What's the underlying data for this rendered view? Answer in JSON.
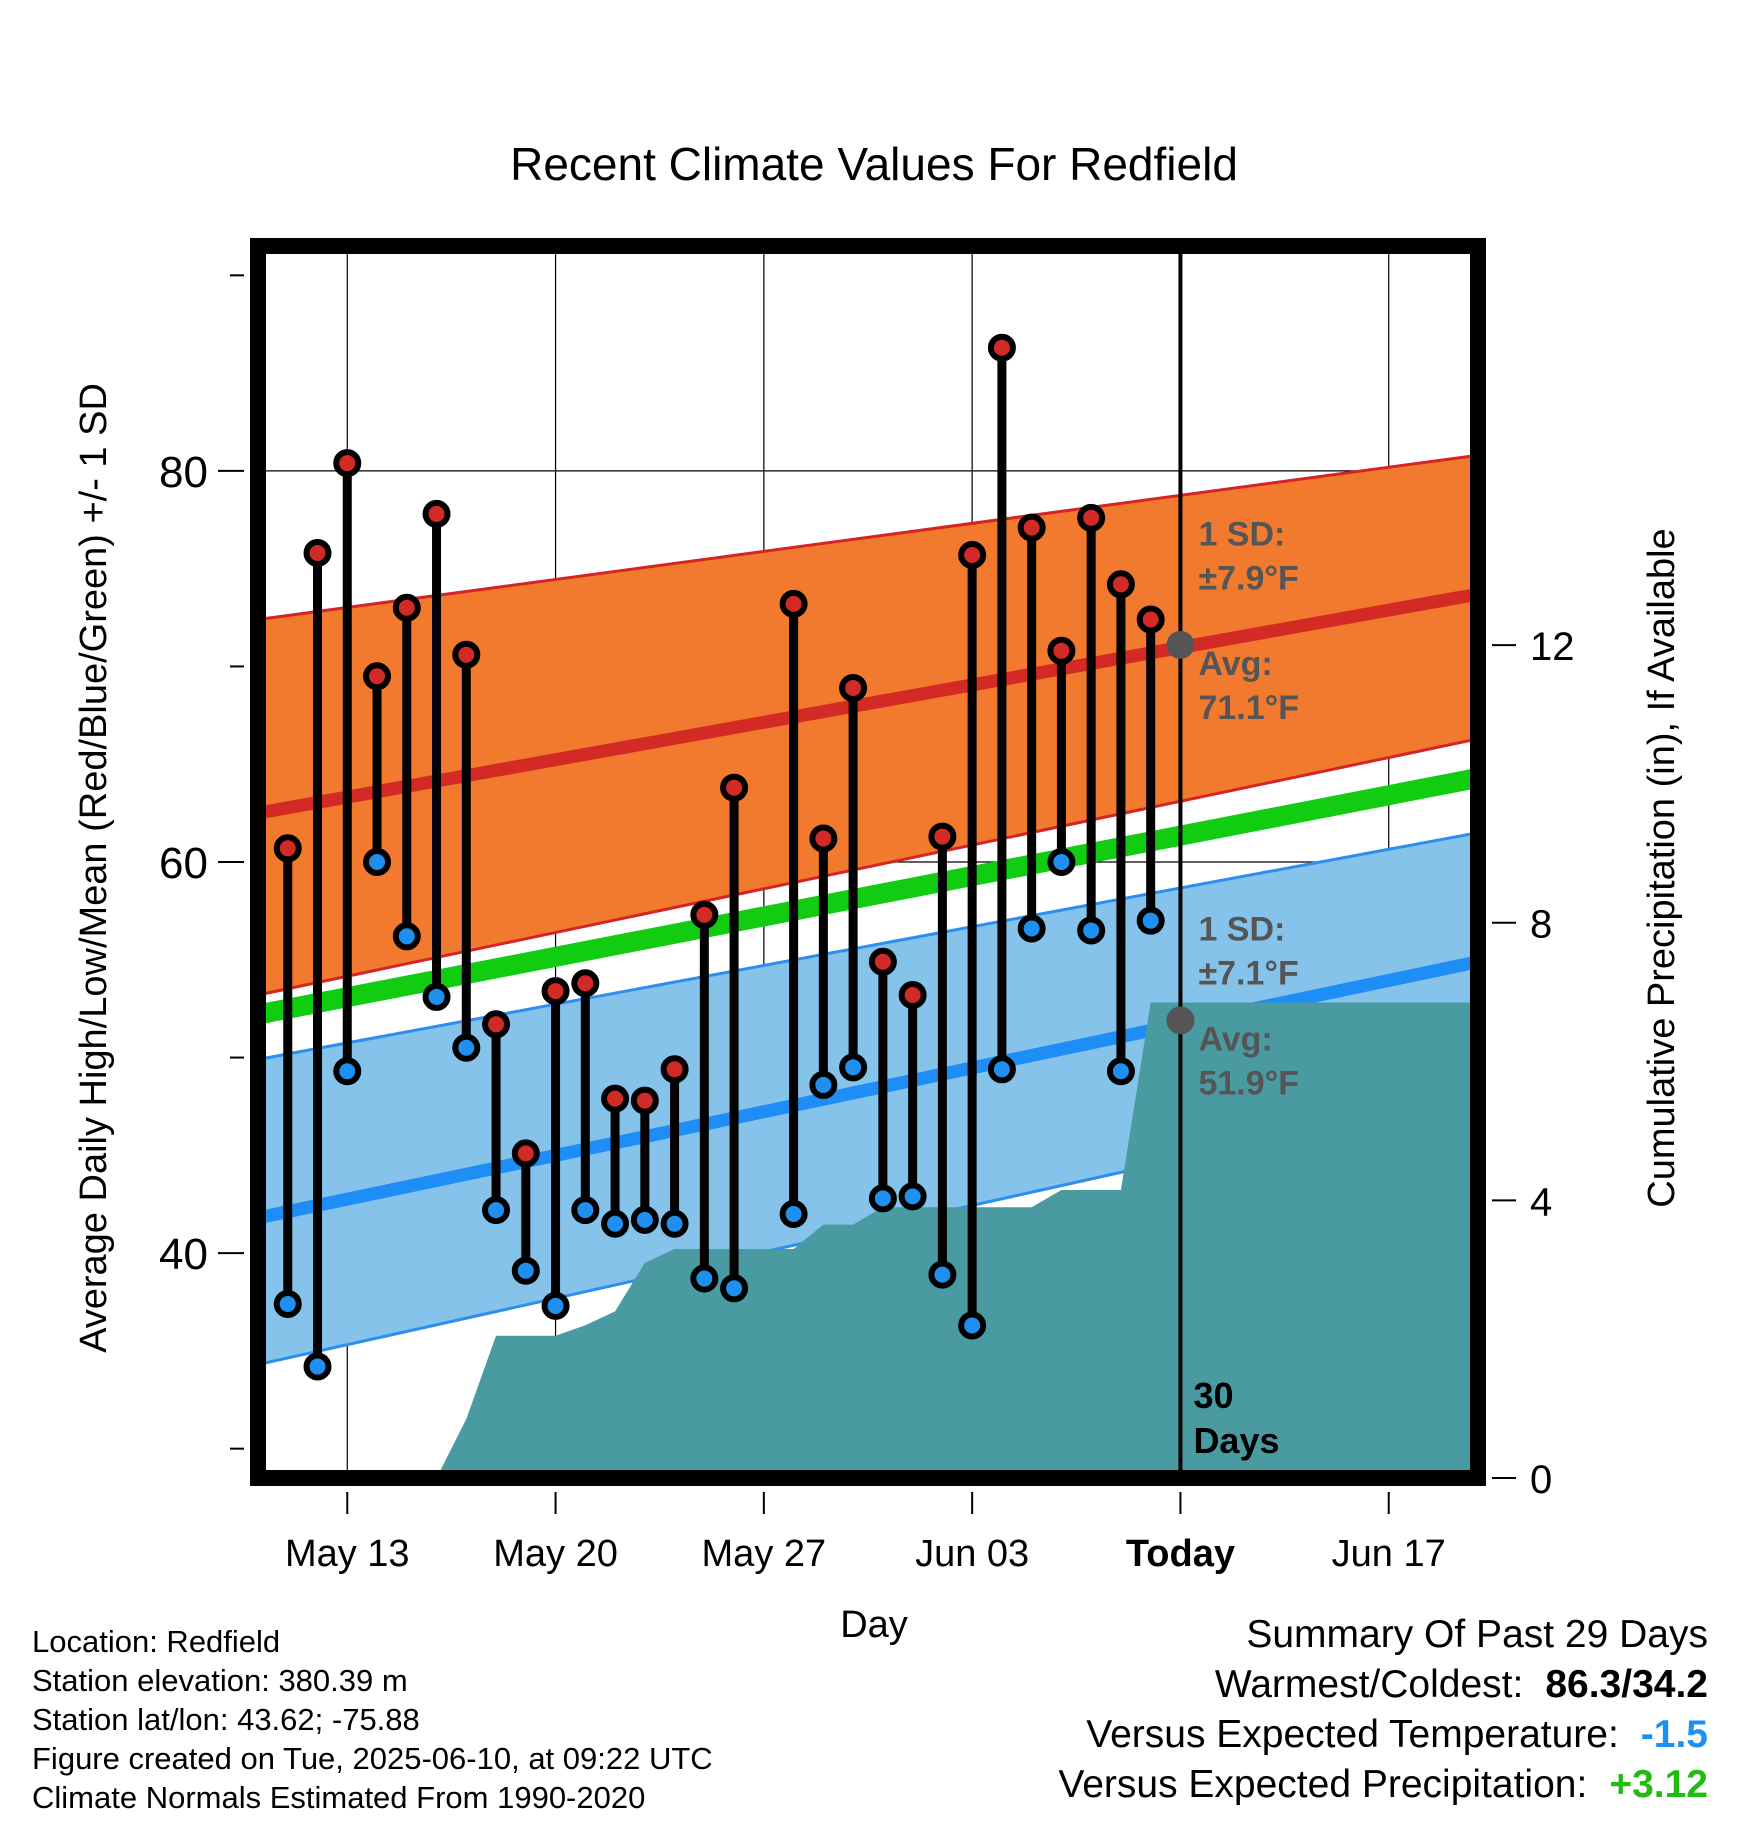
{
  "chart_data": {
    "type": "line",
    "title": "Recent Climate Values For Redfield",
    "xlabel": "Day",
    "ylabel": "Average Daily High/Low/Mean (Red/Blue/Green) +/- 1 SD",
    "y2label": "Cumulative Precipitation (in), If Available",
    "x_tick_labels": [
      "May 13",
      "May 20",
      "May 27",
      "Jun 03",
      "Today",
      "Jun 17"
    ],
    "x_ticks": [
      "2025-05-13",
      "2025-05-20",
      "2025-05-27",
      "2025-06-03",
      "2025-06-10",
      "2025-06-17"
    ],
    "xlim": [
      "2025-05-10",
      "2025-06-20"
    ],
    "ylim": [
      28.5,
      91.5
    ],
    "y_ticks": [
      40,
      60,
      80
    ],
    "y_minor_ticks": [
      30,
      50,
      70,
      90
    ],
    "y2lim": [
      0,
      17.75
    ],
    "y2_ticks": [
      0,
      4,
      8,
      12
    ],
    "grid": true,
    "today": "2025-06-10",
    "today_label_line1": "30",
    "today_label_line2": "Days",
    "normals": {
      "x": [
        "2025-05-10",
        "2025-06-20"
      ],
      "high_mean": [
        62.5,
        73.7
      ],
      "high_upper": [
        72.4,
        80.8
      ],
      "high_lower": [
        53.2,
        66.3
      ],
      "low_mean": [
        41.8,
        54.9
      ],
      "low_upper": [
        49.9,
        61.5
      ],
      "low_lower": [
        34.3,
        48.2
      ],
      "mean": [
        52.2,
        64.3
      ]
    },
    "high_sd_label_line1": "1 SD:",
    "high_sd_label_line2": "±7.9°F",
    "high_avg_label_line1": "Avg:",
    "high_avg_label_line2": "71.1°F",
    "low_sd_label_line1": "1 SD:",
    "low_sd_label_line2": "±7.1°F",
    "low_avg_label_line1": "Avg:",
    "low_avg_label_line2": "51.9°F",
    "today_high_avg": 71.1,
    "today_low_avg": 51.9,
    "daily": {
      "dates": [
        "2025-05-11",
        "2025-05-12",
        "2025-05-13",
        "2025-05-14",
        "2025-05-15",
        "2025-05-16",
        "2025-05-17",
        "2025-05-18",
        "2025-05-19",
        "2025-05-20",
        "2025-05-21",
        "2025-05-22",
        "2025-05-23",
        "2025-05-24",
        "2025-05-25",
        "2025-05-26",
        "2025-05-28",
        "2025-05-29",
        "2025-05-30",
        "2025-05-31",
        "2025-06-01",
        "2025-06-02",
        "2025-06-03",
        "2025-06-04",
        "2025-06-05",
        "2025-06-06",
        "2025-06-07",
        "2025-06-08",
        "2025-06-09"
      ],
      "high": [
        60.7,
        75.8,
        80.4,
        69.5,
        73.0,
        77.8,
        70.6,
        51.7,
        45.1,
        53.4,
        53.8,
        47.9,
        47.8,
        49.4,
        57.3,
        63.8,
        73.2,
        61.2,
        68.9,
        54.9,
        53.2,
        61.3,
        75.7,
        86.3,
        77.1,
        70.8,
        77.6,
        74.2,
        72.4
      ],
      "low": [
        37.4,
        34.2,
        49.3,
        60.0,
        56.2,
        53.1,
        50.5,
        42.2,
        39.1,
        37.3,
        42.2,
        41.5,
        41.7,
        41.5,
        38.7,
        38.2,
        42.0,
        48.6,
        49.5,
        42.8,
        42.9,
        38.9,
        36.3,
        49.4,
        56.6,
        60.0,
        56.5,
        49.3,
        57.0
      ]
    },
    "precip": {
      "x": [
        "2025-05-10",
        "2025-05-16",
        "2025-05-17",
        "2025-05-18",
        "2025-05-19",
        "2025-05-20",
        "2025-05-21",
        "2025-05-22",
        "2025-05-23",
        "2025-05-24",
        "2025-05-25",
        "2025-05-26",
        "2025-05-27",
        "2025-05-28",
        "2025-05-29",
        "2025-05-30",
        "2025-05-31",
        "2025-06-01",
        "2025-06-02",
        "2025-06-03",
        "2025-06-04",
        "2025-06-05",
        "2025-06-06",
        "2025-06-07",
        "2025-06-08",
        "2025-06-09",
        "2025-06-10",
        "2025-06-20"
      ],
      "cumulative": [
        0,
        0,
        0.85,
        2.05,
        2.05,
        2.05,
        2.2,
        2.4,
        3.1,
        3.3,
        3.3,
        3.3,
        3.3,
        3.3,
        3.65,
        3.65,
        3.9,
        3.9,
        3.9,
        3.9,
        3.9,
        3.9,
        4.15,
        4.15,
        4.15,
        6.85,
        6.85,
        6.85
      ]
    }
  },
  "footer": {
    "location": "Location: Redfield",
    "elevation": "Station elevation: 380.39 m",
    "latlon": "Station lat/lon: 43.62; -75.88",
    "created": "Figure created on Tue, 2025-06-10, at 09:22 UTC",
    "normals_source": "Climate Normals Estimated From 1990-2020"
  },
  "summary": {
    "title": "Summary Of Past 29 Days",
    "warmest_coldest_label": "Warmest/Coldest:",
    "warmest_coldest_value": "86.3/34.2",
    "temp_label": "Versus Expected Temperature:",
    "temp_value": "-1.5",
    "precip_label": "Versus Expected Precipitation:",
    "precip_value": "+3.12"
  },
  "colors": {
    "high_band": "#f27a2e",
    "high_line": "#d42a26",
    "high_edge": "#d62424",
    "low_band": "#86c3ea",
    "low_line": "#1e8df5",
    "low_edge": "#2b8ef0",
    "mean_line": "#11cc11",
    "precip_fill": "#4a9aa2",
    "high_dot": "#d22a26",
    "low_dot": "#2090f0",
    "marker_text": "#555555",
    "temp_value": "#2090f0",
    "precip_value": "#22bb11"
  }
}
